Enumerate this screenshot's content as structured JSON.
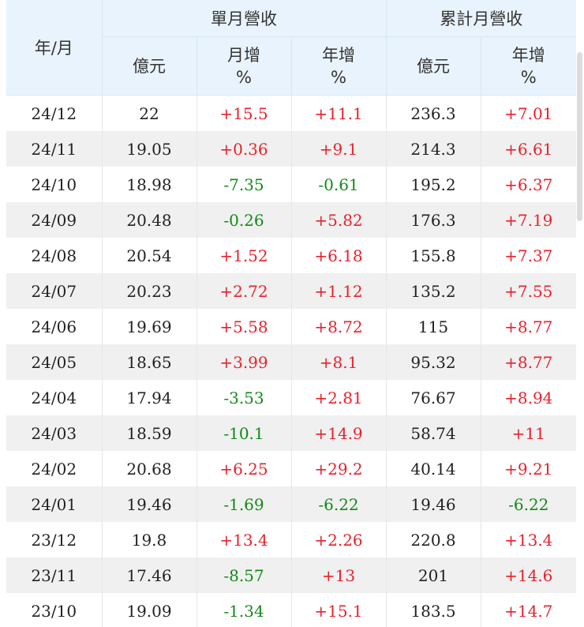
{
  "header": {
    "date_label": "年/月",
    "monthly_group": "單月營收",
    "cumulative_group": "累計月營收",
    "monthly_value": "億元",
    "monthly_mom_line1": "月增",
    "monthly_mom_line2": "%",
    "monthly_yoy_line1": "年增",
    "monthly_yoy_line2": "%",
    "cumulative_value": "億元",
    "cumulative_yoy_line1": "年增",
    "cumulative_yoy_line2": "%"
  },
  "colors": {
    "header_bg": "#e8f3fd",
    "positive": "#e8212c",
    "negative": "#118a17",
    "stripe": "#f0f0f0"
  },
  "rows": [
    [
      "24/12",
      "22",
      "+15.5",
      "+11.1",
      "236.3",
      "+7.01"
    ],
    [
      "24/11",
      "19.05",
      "+0.36",
      "+9.1",
      "214.3",
      "+6.61"
    ],
    [
      "24/10",
      "18.98",
      "-7.35",
      "-0.61",
      "195.2",
      "+6.37"
    ],
    [
      "24/09",
      "20.48",
      "-0.26",
      "+5.82",
      "176.3",
      "+7.19"
    ],
    [
      "24/08",
      "20.54",
      "+1.52",
      "+6.18",
      "155.8",
      "+7.37"
    ],
    [
      "24/07",
      "20.23",
      "+2.72",
      "+1.12",
      "135.2",
      "+7.55"
    ],
    [
      "24/06",
      "19.69",
      "+5.58",
      "+8.72",
      "115",
      "+8.77"
    ],
    [
      "24/05",
      "18.65",
      "+3.99",
      "+8.1",
      "95.32",
      "+8.77"
    ],
    [
      "24/04",
      "17.94",
      "-3.53",
      "+2.81",
      "76.67",
      "+8.94"
    ],
    [
      "24/03",
      "18.59",
      "-10.1",
      "+14.9",
      "58.74",
      "+11"
    ],
    [
      "24/02",
      "20.68",
      "+6.25",
      "+29.2",
      "40.14",
      "+9.21"
    ],
    [
      "24/01",
      "19.46",
      "-1.69",
      "-6.22",
      "19.46",
      "-6.22"
    ],
    [
      "23/12",
      "19.8",
      "+13.4",
      "+2.26",
      "220.8",
      "+13.4"
    ],
    [
      "23/11",
      "17.46",
      "-8.57",
      "+13",
      "201",
      "+14.6"
    ],
    [
      "23/10",
      "19.09",
      "-1.34",
      "+15.1",
      "183.5",
      "+14.7"
    ]
  ]
}
